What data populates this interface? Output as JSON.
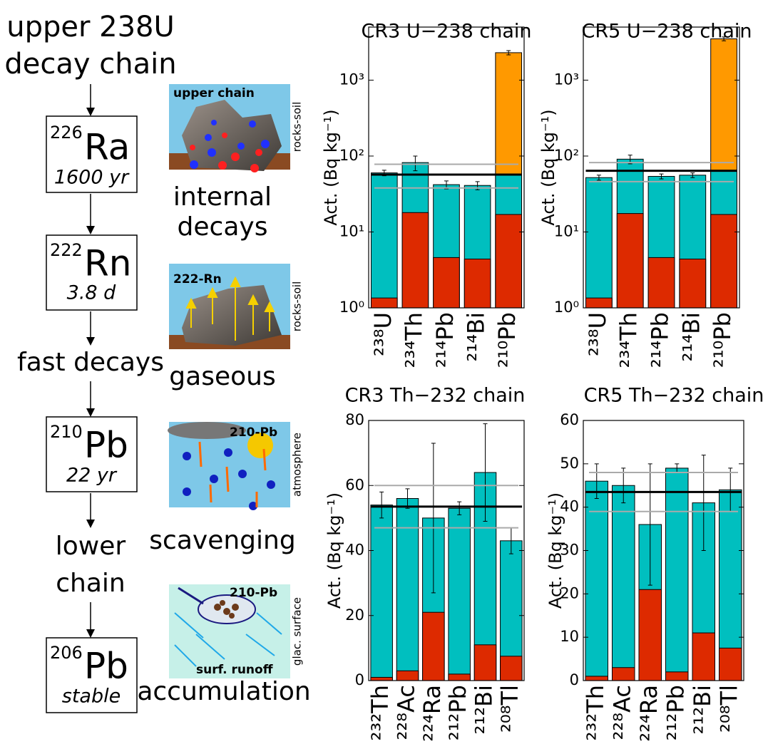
{
  "chart_data": [
    {
      "type": "bar",
      "title": "CR3 U−238 chain",
      "ylabel": "Act. (Bq kg⁻¹)",
      "log": true,
      "categories": [
        "²³⁸U",
        "²³⁴Th",
        "²¹⁴Pb",
        "²¹⁴Bi",
        "²¹⁰Pb"
      ],
      "series": [
        {
          "color": "#ff9900",
          "values": [
            null,
            null,
            null,
            null,
            2300
          ],
          "errors": [
            null,
            null,
            null,
            null,
            150
          ]
        },
        {
          "color": "#00bfbf",
          "values": [
            60,
            82,
            42,
            41,
            57
          ],
          "errors": [
            5,
            18,
            5,
            5,
            null
          ]
        },
        {
          "color": "#dd2a00",
          "values": [
            1.35,
            18,
            4.6,
            4.4,
            17
          ]
        }
      ],
      "ylim": [
        1,
        5000
      ],
      "yticks": [
        {
          "value": 1,
          "label": "10⁰"
        },
        {
          "value": 10,
          "label": "10¹"
        },
        {
          "value": 100,
          "label": "10²"
        },
        {
          "value": 1000,
          "label": "10³"
        }
      ],
      "mean_line": 57,
      "range_lines": [
        38,
        78
      ]
    },
    {
      "type": "bar",
      "title": "CR5 U−238 chain",
      "ylabel": "Act. (Bq kg⁻¹)",
      "log": true,
      "categories": [
        "²³⁸U",
        "²³⁴Th",
        "²¹⁴Pb",
        "²¹⁴Bi",
        "²¹⁰Pb"
      ],
      "series": [
        {
          "color": "#ff9900",
          "values": [
            null,
            null,
            null,
            null,
            3500
          ],
          "errors": [
            null,
            null,
            null,
            null,
            200
          ]
        },
        {
          "color": "#00bfbf",
          "values": [
            52,
            91,
            54,
            56,
            65
          ],
          "errors": [
            4,
            12,
            4,
            4,
            null
          ]
        },
        {
          "color": "#dd2a00",
          "values": [
            1.35,
            17.5,
            4.6,
            4.4,
            17
          ]
        }
      ],
      "ylim": [
        1,
        5000
      ],
      "yticks": [
        {
          "value": 1,
          "label": "10⁰"
        },
        {
          "value": 10,
          "label": "10¹"
        },
        {
          "value": 100,
          "label": "10²"
        },
        {
          "value": 1000,
          "label": "10³"
        }
      ],
      "mean_line": 64,
      "range_lines": [
        46,
        82
      ]
    },
    {
      "type": "bar",
      "title": "CR3 Th−232 chain",
      "ylabel": "Act. (Bq kg⁻¹)",
      "log": false,
      "categories": [
        "²³²Th",
        "²²⁸Ac",
        "²²⁴Ra",
        "²¹²Pb",
        "²¹²Bi",
        "²⁰⁸Tl"
      ],
      "series": [
        {
          "color": "#00bfbf",
          "values": [
            54,
            56,
            50,
            53,
            64,
            43
          ],
          "errors": [
            4,
            3,
            23,
            2,
            15,
            4
          ]
        },
        {
          "color": "#dd2a00",
          "values": [
            1,
            3,
            21,
            2,
            11,
            7.5
          ]
        }
      ],
      "ylim": [
        0,
        80
      ],
      "yticks": [
        0,
        20,
        40,
        60,
        80
      ],
      "mean_line": 53.5,
      "range_lines": [
        47,
        60
      ]
    },
    {
      "type": "bar",
      "title": "CR5 Th−232 chain",
      "ylabel": "Act. (Bq kg⁻¹)",
      "log": false,
      "categories": [
        "²³²Th",
        "²²⁸Ac",
        "²²⁴Ra",
        "²¹²Pb",
        "²¹²Bi",
        "²⁰⁸Tl"
      ],
      "series": [
        {
          "color": "#00bfbf",
          "values": [
            46,
            45,
            36,
            49,
            41,
            44
          ],
          "errors": [
            4,
            4,
            14,
            1,
            11,
            5
          ]
        },
        {
          "color": "#dd2a00",
          "values": [
            1,
            3,
            21,
            2,
            11,
            7.5
          ]
        }
      ],
      "ylim": [
        0,
        60
      ],
      "yticks": [
        0,
        10,
        20,
        30,
        40,
        50,
        60
      ],
      "mean_line": 43.5,
      "range_lines": [
        39,
        48
      ]
    }
  ],
  "diagram": {
    "title": [
      "upper 238U",
      "decay chain"
    ],
    "nuclides": [
      {
        "mass": "226",
        "symbol": "Ra",
        "note": "1600 yr"
      },
      {
        "mass": "222",
        "symbol": "Rn",
        "note": "3.8 d"
      },
      {
        "mass": "210",
        "symbol": "Pb",
        "note": "22 yr"
      },
      {
        "mass": "206",
        "symbol": "Pb",
        "note": "stable"
      }
    ],
    "steps": [
      [
        "fast decays"
      ],
      [
        "lower",
        "chain"
      ]
    ],
    "panels": [
      {
        "label": "upper chain",
        "side": "rocks-soil",
        "caption": [
          "internal",
          "decays"
        ]
      },
      {
        "label": "222-Rn",
        "side": "rocks-soil",
        "caption": [
          "gaseous"
        ]
      },
      {
        "label": "210-Pb",
        "side": "atmosphere",
        "caption": [
          "scavenging"
        ]
      },
      {
        "label": "210-Pb",
        "sublabel": "surf. runoff",
        "side": "glac. surface",
        "caption": [
          "accumulation"
        ]
      }
    ]
  }
}
